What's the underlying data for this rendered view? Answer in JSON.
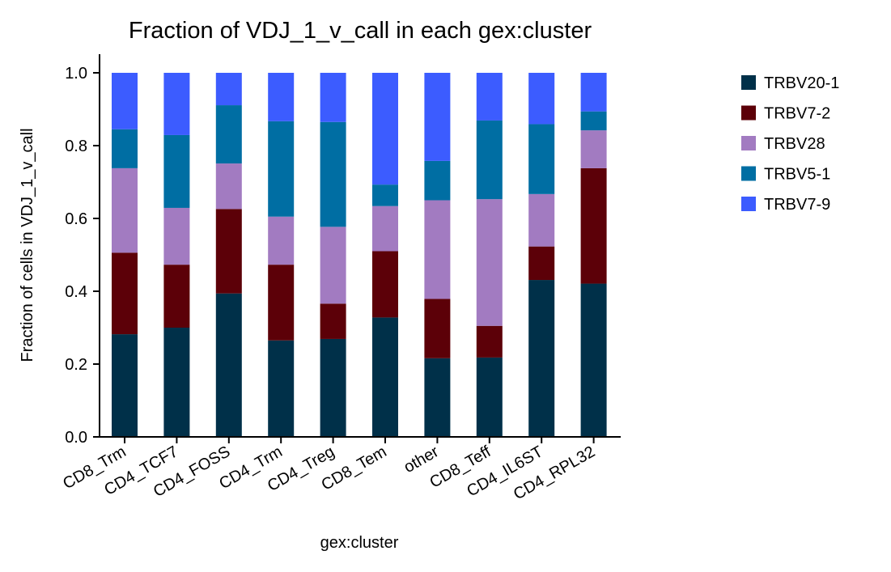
{
  "chart_data": {
    "type": "bar",
    "stacked": true,
    "title": "Fraction of VDJ_1_v_call in each gex:cluster",
    "xlabel": "gex:cluster",
    "ylabel": "Fraction of cells in VDJ_1_v_call",
    "ylim": [
      0,
      1.05
    ],
    "yticks": [
      "0.0",
      "0.2",
      "0.4",
      "0.6",
      "0.8",
      "1.0"
    ],
    "ytick_values": [
      0,
      0.2,
      0.4,
      0.6,
      0.8,
      1.0
    ],
    "grid": false,
    "legend_position": "right",
    "categories": [
      "CD8_Trm",
      "CD4_TCF7",
      "CD4_FOSS",
      "CD4_Trm",
      "CD4_Treg",
      "CD8_Tem",
      "other",
      "CD8_Teff",
      "CD4_IL6ST",
      "CD4_RPL32"
    ],
    "series": [
      {
        "name": "TRBV20-1",
        "color": "#003049",
        "values": [
          0.282,
          0.3,
          0.394,
          0.265,
          0.269,
          0.328,
          0.216,
          0.218,
          0.431,
          0.421
        ]
      },
      {
        "name": "TRBV7-2",
        "color": "#5c0008",
        "values": [
          0.224,
          0.173,
          0.232,
          0.208,
          0.097,
          0.182,
          0.163,
          0.087,
          0.092,
          0.317
        ]
      },
      {
        "name": "TRBV28",
        "color": "#a27bc1",
        "values": [
          0.232,
          0.156,
          0.125,
          0.132,
          0.211,
          0.124,
          0.271,
          0.348,
          0.144,
          0.104
        ]
      },
      {
        "name": "TRBV5-1",
        "color": "#006ea3",
        "values": [
          0.107,
          0.2,
          0.16,
          0.262,
          0.288,
          0.059,
          0.108,
          0.216,
          0.192,
          0.052
        ]
      },
      {
        "name": "TRBV7-9",
        "color": "#3c5cff",
        "values": [
          0.155,
          0.171,
          0.089,
          0.133,
          0.135,
          0.307,
          0.242,
          0.131,
          0.141,
          0.106
        ]
      }
    ]
  }
}
